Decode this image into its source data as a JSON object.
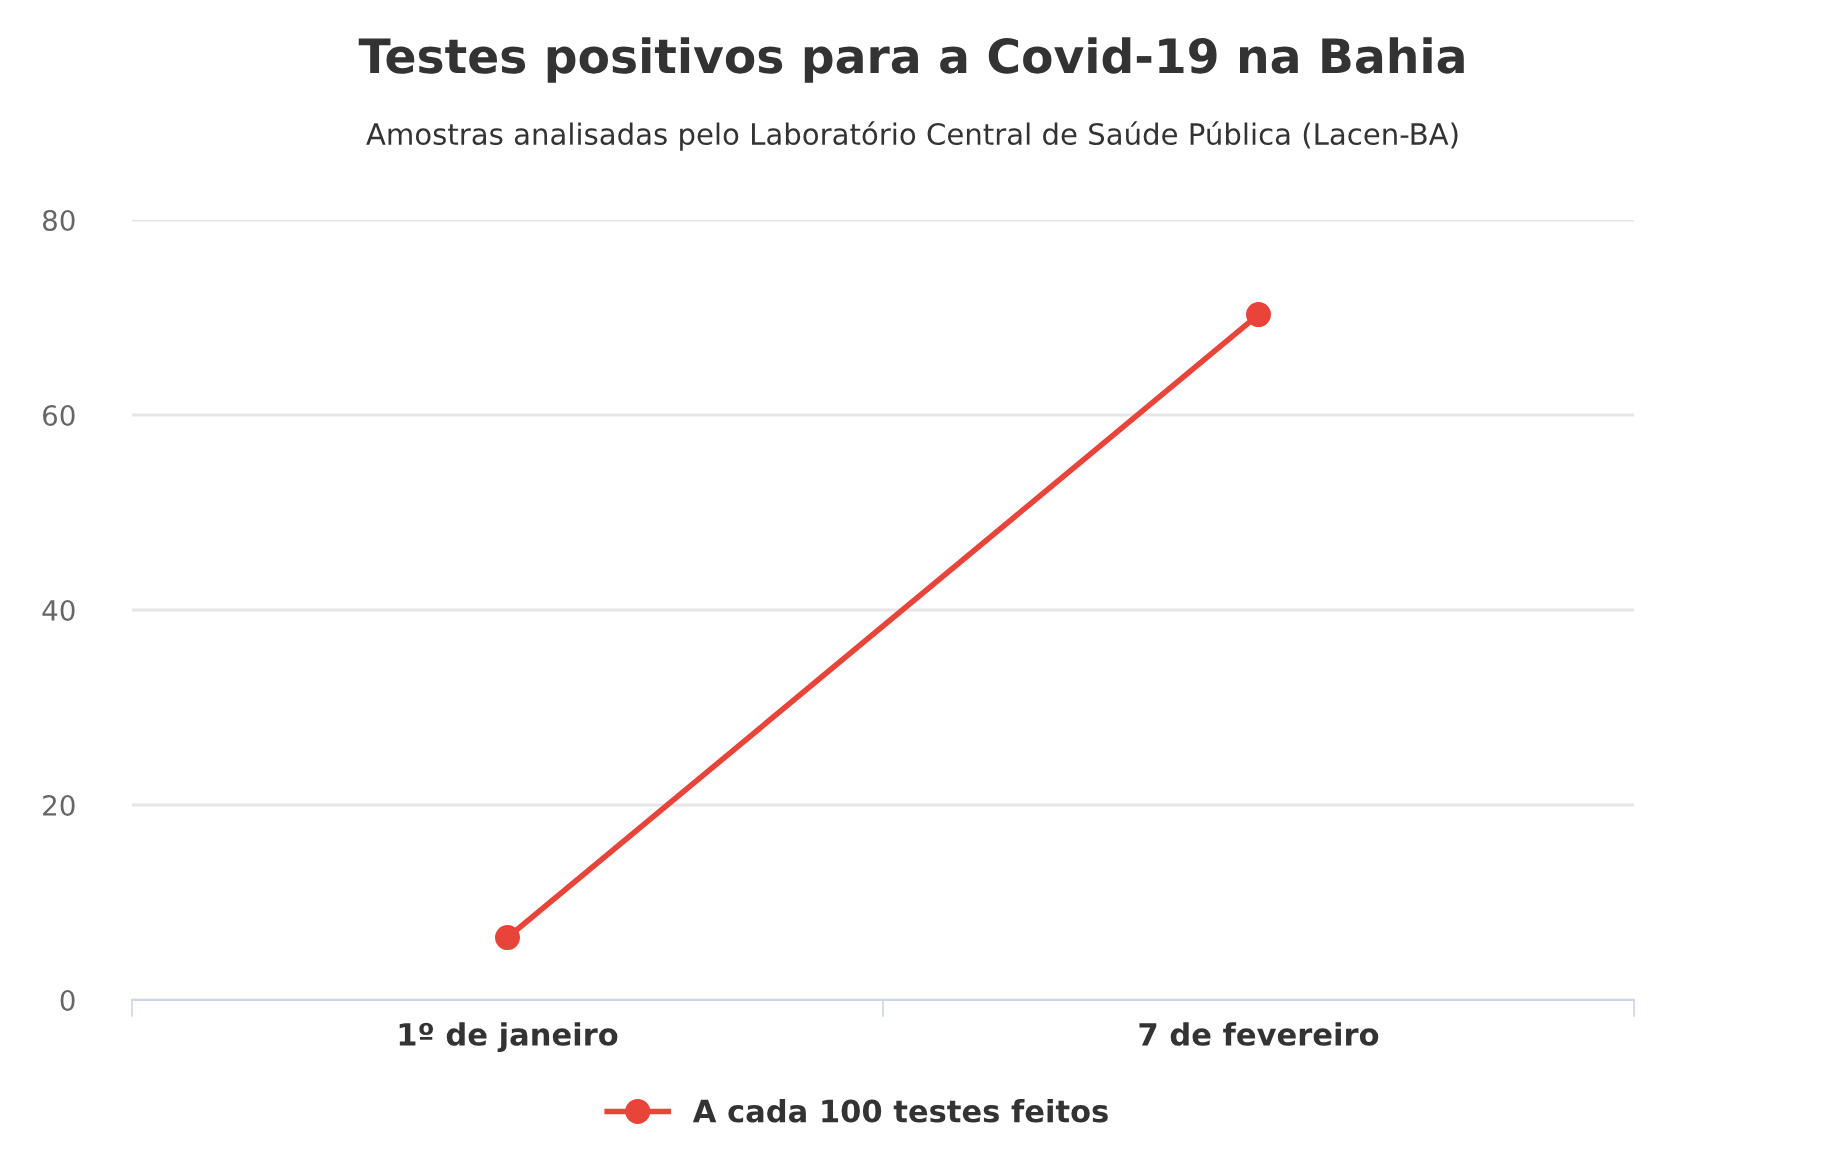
{
  "chart_data": {
    "type": "line",
    "title": "Testes positivos para a Covid-19 na Bahia",
    "subtitle": "Amostras analisadas pelo Laboratório Central de Saúde Pública (Lacen-BA)",
    "categories": [
      "1º de janeiro",
      "7 de fevereiro"
    ],
    "series": [
      {
        "name": "A cada 100 testes feitos",
        "color": "#e8443a",
        "values": [
          6.4,
          70.3
        ]
      }
    ],
    "ylim": [
      0,
      80
    ],
    "yticks": [
      0,
      20,
      40,
      60,
      80
    ],
    "grid": "y",
    "legend": "bottom",
    "marker": "circle",
    "line_style": "solid"
  }
}
